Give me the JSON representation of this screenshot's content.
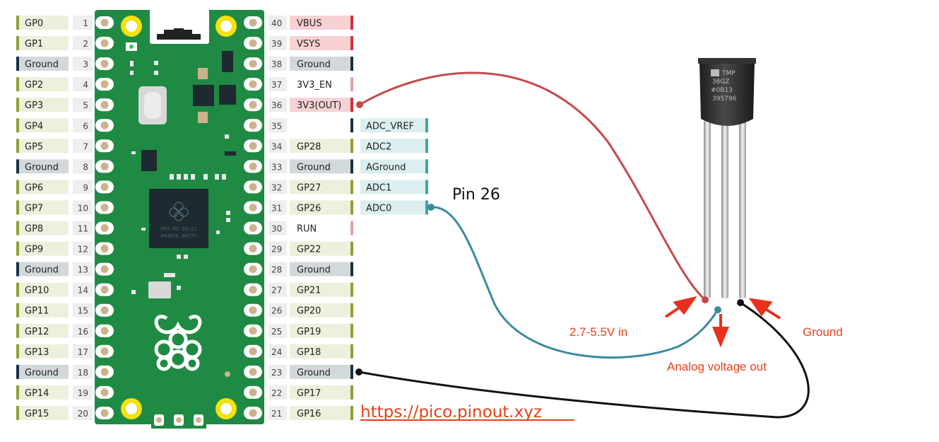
{
  "colors": {
    "gp_fill": "#eef0dd",
    "gp_bar": "#8ea036",
    "ground_fill": "#d3d9db",
    "ground_bar": "#163046",
    "power_fill": "#f7d1d4",
    "power_bar": "#d4303b",
    "en_bar": "#e8a1a6",
    "adc_fill": "#dceff0",
    "adc_bar": "#3aa7a2",
    "board": "#1f8a43",
    "wire_red": "#c64a4a",
    "wire_teal": "#3a8aa0",
    "wire_black": "#111111",
    "annotation": "#e8401c"
  },
  "left_pins": [
    {
      "num": "1",
      "label": "GP0",
      "kind": "gp"
    },
    {
      "num": "2",
      "label": "GP1",
      "kind": "gp"
    },
    {
      "num": "3",
      "label": "Ground",
      "kind": "ground"
    },
    {
      "num": "4",
      "label": "GP2",
      "kind": "gp"
    },
    {
      "num": "5",
      "label": "GP3",
      "kind": "gp"
    },
    {
      "num": "6",
      "label": "GP4",
      "kind": "gp"
    },
    {
      "num": "7",
      "label": "GP5",
      "kind": "gp"
    },
    {
      "num": "8",
      "label": "Ground",
      "kind": "ground"
    },
    {
      "num": "9",
      "label": "GP6",
      "kind": "gp"
    },
    {
      "num": "10",
      "label": "GP7",
      "kind": "gp"
    },
    {
      "num": "11",
      "label": "GP8",
      "kind": "gp"
    },
    {
      "num": "12",
      "label": "GP9",
      "kind": "gp"
    },
    {
      "num": "13",
      "label": "Ground",
      "kind": "ground"
    },
    {
      "num": "14",
      "label": "GP10",
      "kind": "gp"
    },
    {
      "num": "15",
      "label": "GP11",
      "kind": "gp"
    },
    {
      "num": "16",
      "label": "GP12",
      "kind": "gp"
    },
    {
      "num": "17",
      "label": "GP13",
      "kind": "gp"
    },
    {
      "num": "18",
      "label": "Ground",
      "kind": "ground"
    },
    {
      "num": "19",
      "label": "GP14",
      "kind": "gp"
    },
    {
      "num": "20",
      "label": "GP15",
      "kind": "gp"
    }
  ],
  "right_pins": [
    {
      "num": "40",
      "label": "VBUS",
      "kind": "power"
    },
    {
      "num": "39",
      "label": "VSYS",
      "kind": "power"
    },
    {
      "num": "38",
      "label": "Ground",
      "kind": "ground"
    },
    {
      "num": "37",
      "label": "3V3_EN",
      "kind": "en"
    },
    {
      "num": "36",
      "label": "3V3(OUT)",
      "kind": "power"
    },
    {
      "num": "35",
      "label": "",
      "kind": "blank"
    },
    {
      "num": "34",
      "label": "GP28",
      "kind": "gp"
    },
    {
      "num": "33",
      "label": "Ground",
      "kind": "ground"
    },
    {
      "num": "32",
      "label": "GP27",
      "kind": "gp"
    },
    {
      "num": "31",
      "label": "GP26",
      "kind": "gp"
    },
    {
      "num": "30",
      "label": "RUN",
      "kind": "en"
    },
    {
      "num": "29",
      "label": "GP22",
      "kind": "gp"
    },
    {
      "num": "28",
      "label": "Ground",
      "kind": "ground"
    },
    {
      "num": "27",
      "label": "GP21",
      "kind": "gp"
    },
    {
      "num": "26",
      "label": "GP20",
      "kind": "gp"
    },
    {
      "num": "25",
      "label": "GP19",
      "kind": "gp"
    },
    {
      "num": "24",
      "label": "GP18",
      "kind": "gp"
    },
    {
      "num": "23",
      "label": "Ground",
      "kind": "ground"
    },
    {
      "num": "22",
      "label": "GP17",
      "kind": "gp"
    },
    {
      "num": "21",
      "label": "GP16",
      "kind": "gp"
    }
  ],
  "adc_pins": [
    {
      "row": 5,
      "label": "ADC_VREF"
    },
    {
      "row": 6,
      "label": "ADC2"
    },
    {
      "row": 7,
      "label": "AGround"
    },
    {
      "row": 8,
      "label": "ADC1"
    },
    {
      "row": 9,
      "label": "ADC0"
    }
  ],
  "sensor_marking": [
    "TMP",
    "36GZ",
    "#0B13",
    "395796"
  ],
  "annotations": {
    "pin26": "Pin 26",
    "vin": "2.7-5.5V in",
    "vout": "Analog voltage out",
    "ground": "Ground",
    "url": "https://pico.pinout.xyz"
  }
}
